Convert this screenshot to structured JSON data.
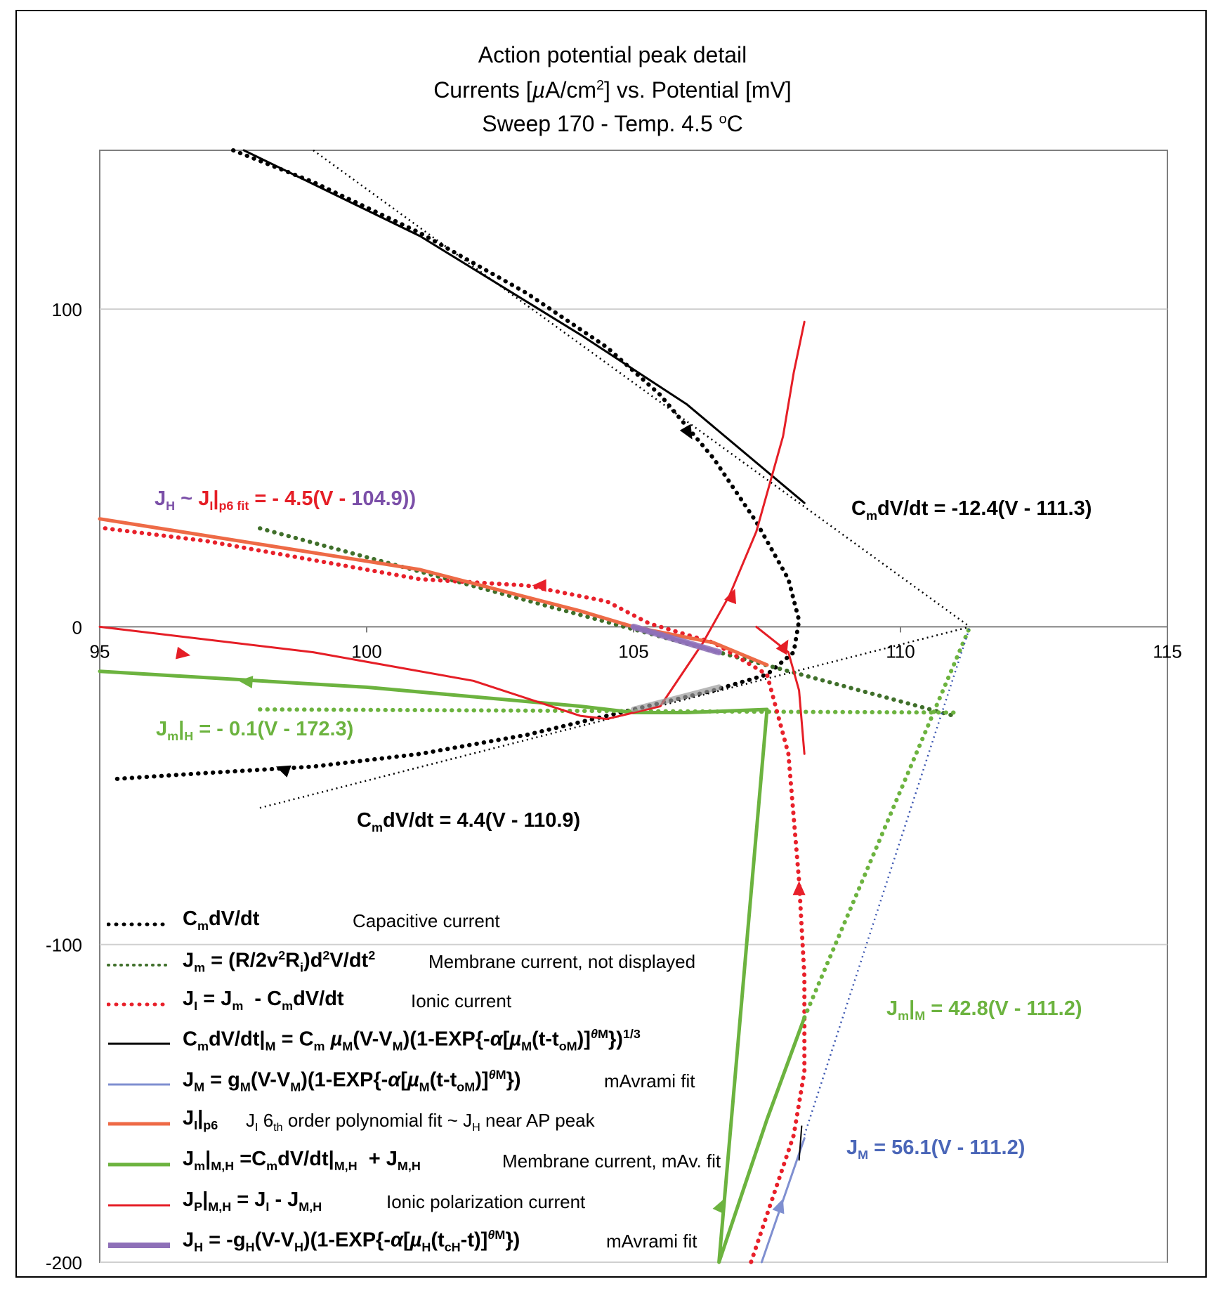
{
  "title": {
    "line1": "Action potential peak detail",
    "line2": "Currents [µA/cm²] vs. Potential [mV]",
    "line3": "Sweep 170 - Temp. 4.5 ºC"
  },
  "colors": {
    "black": "#000000",
    "dark_green": "#3f6f2a",
    "red_dotted": "#e8202a",
    "blue": "#7f8fd0",
    "blue_dotted": "#3a55b0",
    "orange": "#ee6a46",
    "green": "#6cb33f",
    "red": "#e51e26",
    "purple": "#8e70b8",
    "grey_band": "#9a9a9a"
  },
  "annotations": {
    "cm_neg": "CmdV/dt = -12.4(V - 111.3)",
    "cm_pos": "CmdV/dt = 4.4(V - 110.9)",
    "jh_fit": "JH ~ JI|p6 fit = - 4.5(V - 104.9))",
    "jm_h": "Jm|H = - 0.1(V - 172.3)",
    "jm_m": "Jm|M = 42.8(V - 111.2)",
    "jm_eq": "JM = 56.1(V - 111.2)"
  },
  "legend": [
    {
      "key": "capacitive",
      "label": "CmdV/dt",
      "desc": "Capacitive current",
      "style": "dotted",
      "color": "#000000"
    },
    {
      "key": "membrane",
      "label": "Jm = (R/2v²Ri)d²V/dt²",
      "desc": "Membrane current, not displayed",
      "style": "dotted",
      "color": "#3f6f2a"
    },
    {
      "key": "ionic",
      "label": "JI = Jm - CmdV/dt",
      "desc": "Ionic current",
      "style": "dotted",
      "color": "#e8202a"
    },
    {
      "key": "cap_fit",
      "label": "CmdV/dt|M = Cm µM(V-VM)(1-EXP{-α[µM(t-toM)]θM})1/3",
      "desc": "",
      "style": "solid",
      "color": "#000000"
    },
    {
      "key": "jm_fit",
      "label": "JM = gM(V-VM)(1-EXP{-α[µM(t-toM)]θM})",
      "desc": "mAvrami fit",
      "style": "solid",
      "color": "#7f8fd0"
    },
    {
      "key": "ji_p6",
      "label": "JI|p6",
      "desc": "JI 6th order polynomial fit ~ JH near AP peak",
      "style": "solid-thick",
      "color": "#ee6a46"
    },
    {
      "key": "jm_mh",
      "label": "Jm|M,H = CmdV/dt|M,H + JM,H",
      "desc": "Membrane current, mAv. fit",
      "style": "solid-thick",
      "color": "#6cb33f"
    },
    {
      "key": "jp",
      "label": "JP|M,H = JI - JM,H",
      "desc": "Ionic polarization current",
      "style": "solid",
      "color": "#e51e26"
    },
    {
      "key": "jh",
      "label": "JH = -gH(V-VH)(1-EXP{-α[µH(tcH-t)]θM})",
      "desc": "mAvrami fit",
      "style": "solid-thick",
      "color": "#8e70b8"
    }
  ],
  "chart_data": {
    "type": "line",
    "title": "Action potential peak detail",
    "subtitle": "Currents [µA/cm²] vs. Potential [mV] — Sweep 170 - Temp. 4.5 ºC",
    "xlabel": "",
    "ylabel": "",
    "xlim": [
      95,
      115
    ],
    "ylim": [
      -200,
      150
    ],
    "x_ticks": [
      95,
      100,
      105,
      110,
      115
    ],
    "y_ticks": [
      100,
      0,
      -100,
      -200
    ],
    "grid": "horizontal",
    "legend_position": "bottom-left inside",
    "series": [
      {
        "name": "CmdV/dt",
        "style": "dotted",
        "color": "#000000",
        "x": [
          97.5,
          99,
          101,
          103,
          104.5,
          105.5,
          106.5,
          107.3,
          107.9,
          108.1,
          108.0,
          107.5,
          106.5,
          105,
          103,
          101,
          99,
          97,
          95.2
        ],
        "y": [
          150,
          140,
          124,
          105,
          88,
          73,
          53,
          33,
          15,
          2,
          -8,
          -15,
          -20,
          -26,
          -34,
          -40,
          -44,
          -46,
          -48
        ]
      },
      {
        "name": "Jm|M,H dotted (Jm = (R/2v²Ri)d²V/dt²)",
        "style": "dotted",
        "color": "#3f6f2a",
        "x": [
          98,
          111
        ],
        "y": [
          31,
          -28
        ]
      },
      {
        "name": "Jm|H line",
        "style": "dotted",
        "color": "#6cb33f",
        "x": [
          98,
          111
        ],
        "y": [
          -26,
          -27
        ]
      },
      {
        "name": "JI = Jm - CmdV/dt",
        "style": "dotted",
        "color": "#e8202a",
        "x": [
          95.1,
          97,
          99,
          101,
          103,
          104.5,
          105.3,
          106.5,
          107.5,
          107.9,
          108.1,
          108.2,
          108.2,
          108.0,
          107.6,
          107.2
        ],
        "y": [
          31,
          27,
          21,
          15,
          13,
          8,
          1,
          -5,
          -15,
          -40,
          -80,
          -110,
          -140,
          -160,
          -180,
          -200
        ]
      },
      {
        "name": "CmdV/dt|M fit",
        "style": "solid",
        "color": "#000000",
        "x": [
          97.7,
          101,
          104,
          106,
          108.2
        ],
        "y": [
          150,
          123,
          92,
          70,
          39
        ]
      },
      {
        "name": "CmdV/dt = -12.4(V - 111.3)",
        "style": "thin-dotted",
        "color": "#000000",
        "x": [
          99,
          111.3
        ],
        "y": [
          150,
          0
        ]
      },
      {
        "name": "CmdV/dt = 4.4(V - 110.9)",
        "style": "thin-dotted",
        "color": "#000000",
        "x": [
          98,
          111.3
        ],
        "y": [
          -57,
          0
        ]
      },
      {
        "name": "Jm|M line",
        "style": "dotted",
        "color": "#6cb33f",
        "x": [
          108.2,
          111.3
        ],
        "y": [
          -123,
          0
        ]
      },
      {
        "name": "JM line",
        "style": "thin-dotted",
        "color": "#3a55b0",
        "x": [
          108.2,
          111.3
        ],
        "y": [
          -160,
          0
        ]
      },
      {
        "name": "JM = gM(V-VM)(1-EXP{-α[µM(t-toM)]θM})",
        "style": "solid",
        "color": "#7f8fd0",
        "x": [
          107.4,
          108.2
        ],
        "y": [
          -200,
          -161
        ]
      },
      {
        "name": "JI|p6",
        "style": "solid-thick",
        "color": "#ee6a46",
        "x": [
          95,
          98,
          101,
          104,
          105,
          106.5,
          107.5
        ],
        "y": [
          34,
          26,
          18,
          5,
          0,
          -5,
          -12
        ]
      },
      {
        "name": "Jm|M,H = CmdV/dt|M,H + JM,H",
        "style": "solid-thick",
        "color": "#6cb33f",
        "x": [
          95,
          100,
          104,
          105,
          106,
          107.5,
          106.6,
          107.5,
          108.2
        ],
        "y": [
          -14,
          -19,
          -25,
          -27,
          -27,
          -26,
          -200,
          -155,
          -123
        ]
      },
      {
        "name": "JP|M,H = JI - JM,H",
        "style": "solid",
        "color": "#e51e26",
        "x": [
          95,
          99,
          102,
          104,
          104.5,
          105.5,
          106.3,
          106.8,
          107.3,
          107.8,
          108.0,
          108.2
        ],
        "y": [
          0,
          -8,
          -17,
          -28,
          -29,
          -25,
          -5,
          10,
          30,
          60,
          80,
          96
        ]
      },
      {
        "name": "JP|M,H (second branch)",
        "style": "solid",
        "color": "#e51e26",
        "x": [
          107.3,
          107.9,
          108.1,
          108.2
        ],
        "y": [
          0,
          -8,
          -20,
          -40
        ]
      },
      {
        "name": "JH = -gH(V-VH)(1-EXP{-α[µH(tcH-t)]θM})",
        "style": "solid-thick",
        "color": "#8e70b8",
        "x": [
          105,
          106.6
        ],
        "y": [
          0,
          -8
        ]
      }
    ]
  }
}
